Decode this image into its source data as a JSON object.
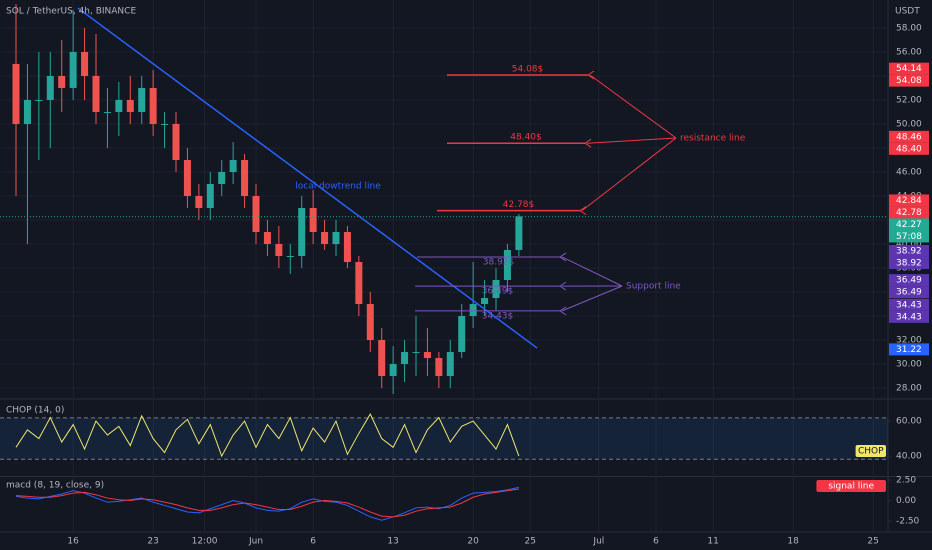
{
  "header": {
    "symbol": "SOL / TetherUS, 4h, BINANCE",
    "currency": "USDT"
  },
  "chart_data": [
    {
      "type": "candlestick",
      "x": [
        11,
        12,
        13,
        14,
        15,
        16,
        17,
        18,
        19,
        20,
        21,
        22,
        23,
        24,
        25,
        26,
        27,
        28,
        29,
        30,
        31,
        32,
        33,
        34,
        35,
        36,
        37,
        38,
        39,
        40,
        41,
        42,
        43,
        44,
        45,
        46,
        47,
        48,
        49,
        50,
        51,
        52,
        53,
        54,
        55
      ],
      "open": [
        55,
        50,
        52,
        52,
        54,
        53,
        56,
        54,
        51,
        51,
        52,
        51,
        53,
        50,
        50,
        47,
        44,
        43,
        45,
        46,
        47,
        44,
        41,
        40,
        39,
        39,
        43,
        41,
        40,
        41,
        38.5,
        35,
        32,
        29,
        30,
        31,
        31,
        30.5,
        29,
        31,
        34,
        35,
        35.5,
        37,
        39.5
      ],
      "high": [
        60,
        55,
        56,
        56,
        57,
        59.5,
        58,
        57.5,
        53,
        53.5,
        54,
        54,
        54.5,
        51,
        51,
        48,
        45,
        46,
        47,
        48.5,
        47.5,
        45,
        42,
        41.5,
        40,
        44,
        44.5,
        42,
        42,
        41.5,
        39,
        36,
        33,
        31.5,
        32,
        34,
        33,
        31,
        32,
        35,
        38.5,
        37,
        38,
        40,
        42.5
      ],
      "low": [
        44,
        40,
        47,
        48,
        51,
        52,
        52,
        50,
        48,
        49,
        50,
        50,
        49,
        48,
        46,
        43,
        42,
        42,
        44,
        45,
        43,
        40,
        39,
        38,
        37.5,
        38,
        40,
        39.5,
        39,
        38,
        34,
        31,
        28,
        27.5,
        28.5,
        29,
        29,
        28,
        28,
        30.5,
        33,
        34,
        34.5,
        36,
        39
      ],
      "close": [
        50,
        52,
        52,
        54,
        53,
        56,
        54,
        51,
        51,
        52,
        51,
        53,
        50,
        50,
        47,
        44,
        43,
        45,
        46,
        47,
        44,
        41,
        40,
        39,
        39,
        43,
        41,
        40,
        41,
        38.5,
        35,
        32,
        29,
        30,
        31,
        31,
        30.5,
        29,
        31,
        34,
        35,
        35.5,
        37,
        39.5,
        42.3
      ],
      "up_color": "#26a69a",
      "down_color": "#ef5350",
      "xlim": [
        9.6,
        87.3
      ],
      "xticks": [
        16,
        23,
        {
          "value": 27.5,
          "label": "12:00"
        },
        {
          "value": 32,
          "label": "Jun"
        },
        {
          "value": 37,
          "label": "6"
        },
        {
          "value": 44,
          "label": "13"
        },
        {
          "value": 51,
          "label": "20"
        },
        {
          "value": 56,
          "label": "25"
        },
        {
          "value": 62,
          "label": "Jul"
        },
        {
          "value": 67,
          "label": "6"
        },
        {
          "value": 72,
          "label": "11"
        },
        {
          "value": 79,
          "label": "18"
        },
        {
          "value": 86,
          "label": "25"
        }
      ],
      "ylim": [
        27.17,
        60.33
      ],
      "yticks": [
        {
          "value": 28,
          "label": "28.00"
        },
        {
          "value": 30,
          "label": "30.00"
        },
        {
          "value": 32,
          "label": "32.00"
        },
        {
          "value": 34,
          "label": "34.00"
        },
        {
          "value": 36,
          "label": "36.00"
        },
        {
          "value": 38,
          "label": "38.00"
        },
        {
          "value": 40,
          "label": "40.00"
        },
        {
          "value": 42,
          "label": "42.00"
        },
        {
          "value": 44,
          "label": "44.00"
        },
        {
          "value": 46,
          "label": "46.00"
        },
        {
          "value": 48,
          "label": "48.00"
        },
        {
          "value": 50,
          "label": "50.00"
        },
        {
          "value": 52,
          "label": "52.00"
        },
        {
          "value": 54,
          "label": "54.00"
        },
        {
          "value": 56,
          "label": "56.00"
        },
        {
          "value": 58,
          "label": "58.00"
        }
      ],
      "grid": true,
      "trendline": {
        "label": "local dowtrend line",
        "color": "#2962ff",
        "x": [
          16.4,
          56.6
        ],
        "y": [
          59.67,
          31.33
        ]
      },
      "resistance": {
        "label": "resistance line",
        "color": "#f23645",
        "levels": [
          54.08,
          48.4,
          42.78
        ],
        "level_labels": [
          "54.08$",
          "48.40$",
          "42.78$"
        ]
      },
      "support": {
        "label": "Support line",
        "color": "#7e57c2",
        "levels": [
          38.92,
          36.49,
          34.43
        ],
        "level_labels": [
          "38.92$",
          "36.49$",
          "34.43$"
        ]
      },
      "price_tags": {
        "values": [
          54.14,
          54.08,
          48.46,
          48.4,
          42.84,
          42.78,
          38.92,
          38.92,
          36.49,
          36.49,
          34.43,
          34.43,
          31.22
        ],
        "value_labels": [
          "54.14",
          "54.08",
          "48.46",
          "48.40",
          "42.84",
          "42.78",
          "38.92",
          "38.92",
          "36.49",
          "36.49",
          "34.43",
          "34.43",
          "31.22"
        ],
        "colors": [
          "#f23645",
          "#f23645",
          "#f23645",
          "#f23645",
          "#f23645",
          "#f23645",
          "#5e35b1",
          "#5e35b1",
          "#5e35b1",
          "#5e35b1",
          "#5e35b1",
          "#5e35b1",
          "#2962ff"
        ]
      },
      "current": {
        "value": 42.27,
        "value_label": "42.27",
        "countdown": "57:08",
        "color": "#22ab94"
      }
    },
    {
      "type": "line",
      "title": "CHOP (14, 0)",
      "x": [
        11,
        12,
        13,
        14,
        15,
        16,
        17,
        18,
        19,
        20,
        21,
        22,
        23,
        24,
        25,
        26,
        27,
        28,
        29,
        30,
        31,
        32,
        33,
        34,
        35,
        36,
        37,
        38,
        39,
        40,
        41,
        42,
        43,
        44,
        45,
        46,
        47,
        48,
        49,
        50,
        51,
        52,
        53,
        54,
        55
      ],
      "series": [
        {
          "name": "CHOP",
          "color": "#f0e66c",
          "values": [
            45,
            55,
            50,
            62,
            48,
            58,
            44,
            60,
            52,
            57,
            46,
            63,
            50,
            42,
            55,
            61,
            47,
            58,
            40,
            52,
            60,
            45,
            58,
            50,
            62,
            43,
            56,
            48,
            60,
            41,
            53,
            64,
            50,
            45,
            58,
            42,
            55,
            62,
            48,
            57,
            60,
            52,
            44,
            58,
            40
          ]
        }
      ],
      "ylim": [
        28.6,
        70.9
      ],
      "yticks": [
        {
          "value": 40,
          "label": "40.00"
        },
        {
          "value": 60,
          "label": "60.00"
        }
      ],
      "bands": [
        61.8,
        38.2
      ]
    },
    {
      "type": "line",
      "title": "macd (8, 19, close, 9)",
      "x": [
        11,
        12,
        13,
        14,
        15,
        16,
        17,
        18,
        19,
        20,
        21,
        22,
        23,
        24,
        25,
        26,
        27,
        28,
        29,
        30,
        31,
        32,
        33,
        34,
        35,
        36,
        37,
        38,
        39,
        40,
        41,
        42,
        43,
        44,
        45,
        46,
        47,
        48,
        49,
        50,
        51,
        52,
        53,
        54,
        55
      ],
      "series": [
        {
          "color": "#2962ff",
          "values": [
            0.5,
            0.3,
            0.2,
            0.5,
            0.8,
            1.2,
            0.9,
            0.3,
            -0.2,
            -0.1,
            0.1,
            0.3,
            -0.2,
            -0.6,
            -1.0,
            -1.4,
            -1.5,
            -1.0,
            -0.5,
            0.0,
            -0.3,
            -0.9,
            -1.2,
            -1.3,
            -1.0,
            -0.2,
            0.2,
            -0.1,
            -0.2,
            -0.6,
            -1.3,
            -2.0,
            -2.4,
            -2.0,
            -1.5,
            -0.9,
            -0.8,
            -1.0,
            -0.6,
            0.3,
            0.9,
            1.0,
            1.1,
            1.3,
            1.6
          ]
        },
        {
          "name": "signal line",
          "color": "#f23645",
          "values": [
            0.6,
            0.5,
            0.4,
            0.4,
            0.6,
            0.9,
            1.0,
            0.7,
            0.3,
            0.1,
            0.0,
            0.2,
            0.1,
            -0.2,
            -0.5,
            -0.9,
            -1.2,
            -1.2,
            -0.9,
            -0.5,
            -0.3,
            -0.5,
            -0.8,
            -1.1,
            -1.1,
            -0.7,
            -0.2,
            0.0,
            -0.1,
            -0.3,
            -0.8,
            -1.4,
            -1.9,
            -2.0,
            -1.8,
            -1.3,
            -1.0,
            -0.9,
            -0.8,
            -0.3,
            0.4,
            0.8,
            1.0,
            1.2,
            1.4
          ]
        }
      ],
      "ylim": [
        -3.84,
        2.87
      ],
      "yticks": [
        {
          "value": 2.5,
          "label": "2.50"
        },
        {
          "value": 0,
          "label": "0.00"
        },
        {
          "value": -2.5,
          "label": "-2.50"
        }
      ]
    }
  ]
}
